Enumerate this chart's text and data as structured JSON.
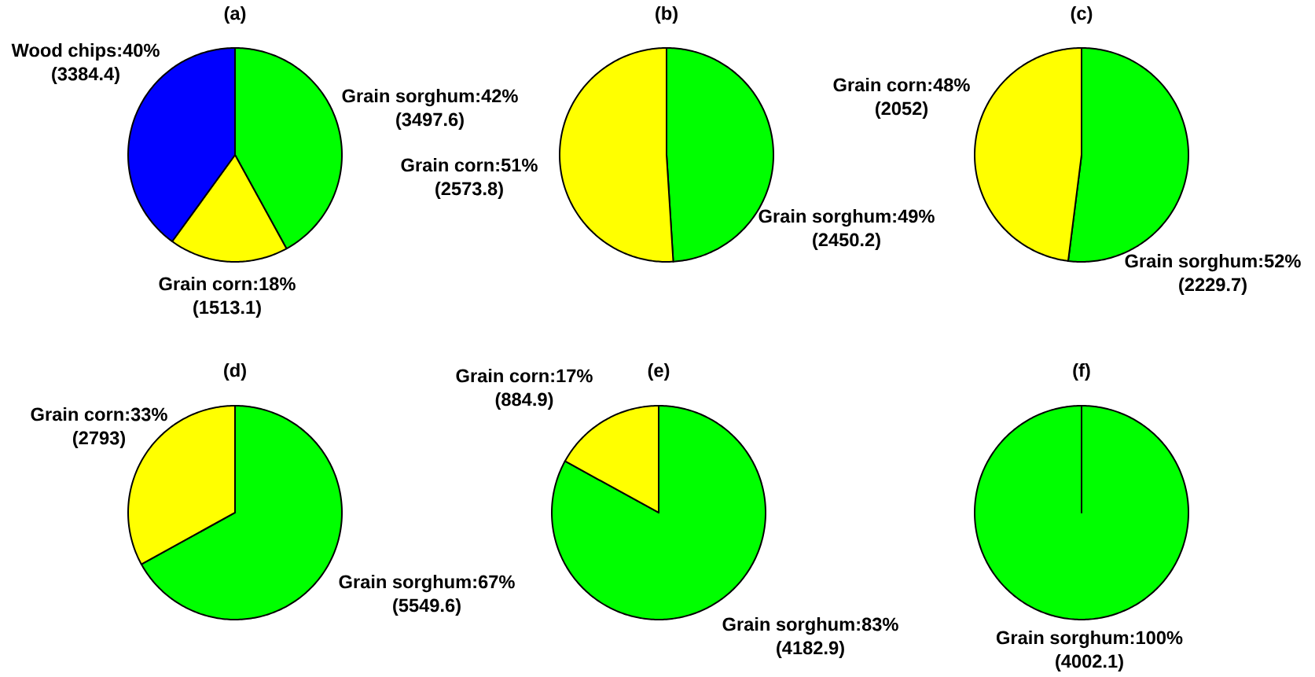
{
  "chart_data": [
    {
      "type": "pie",
      "title": "(a)",
      "categories": [
        "Grain sorghum",
        "Grain corn",
        "Wood chips"
      ],
      "values": [
        42,
        18,
        40
      ],
      "colors": [
        "#00ff00",
        "#ffff00",
        "#0000ff"
      ],
      "value_labels": [
        ":42% (3497.6)",
        ":18% (1513.1)",
        ":40% (3384.4)"
      ]
    },
    {
      "type": "pie",
      "title": "(b)",
      "categories": [
        "Grain sorghum",
        "Grain corn"
      ],
      "values": [
        49,
        51
      ],
      "colors": [
        "#00ff00",
        "#ffff00"
      ],
      "value_labels": [
        ":49% (2450.2)",
        ":51% (2573.8)"
      ]
    },
    {
      "type": "pie",
      "title": "(c)",
      "categories": [
        "Grain sorghum",
        "Grain corn"
      ],
      "values": [
        52,
        48
      ],
      "colors": [
        "#00ff00",
        "#ffff00"
      ],
      "value_labels": [
        ":52% (2229.7)",
        ":48% (2052)"
      ]
    },
    {
      "type": "pie",
      "title": "(d)",
      "categories": [
        "Grain sorghum",
        "Grain corn"
      ],
      "values": [
        67,
        33
      ],
      "colors": [
        "#00ff00",
        "#ffff00"
      ],
      "value_labels": [
        ":67% (5549.6)",
        ":33% (2793)"
      ]
    },
    {
      "type": "pie",
      "title": "(e)",
      "categories": [
        "Grain sorghum",
        "Grain corn"
      ],
      "values": [
        83,
        17
      ],
      "colors": [
        "#00ff00",
        "#ffff00"
      ],
      "value_labels": [
        ":83% (4182.9)",
        ":17% (884.9)"
      ]
    },
    {
      "type": "pie",
      "title": "(f)",
      "categories": [
        "Grain sorghum"
      ],
      "values": [
        100
      ],
      "colors": [
        "#00ff00"
      ],
      "value_labels": [
        ":100% (4002.1)"
      ]
    }
  ]
}
